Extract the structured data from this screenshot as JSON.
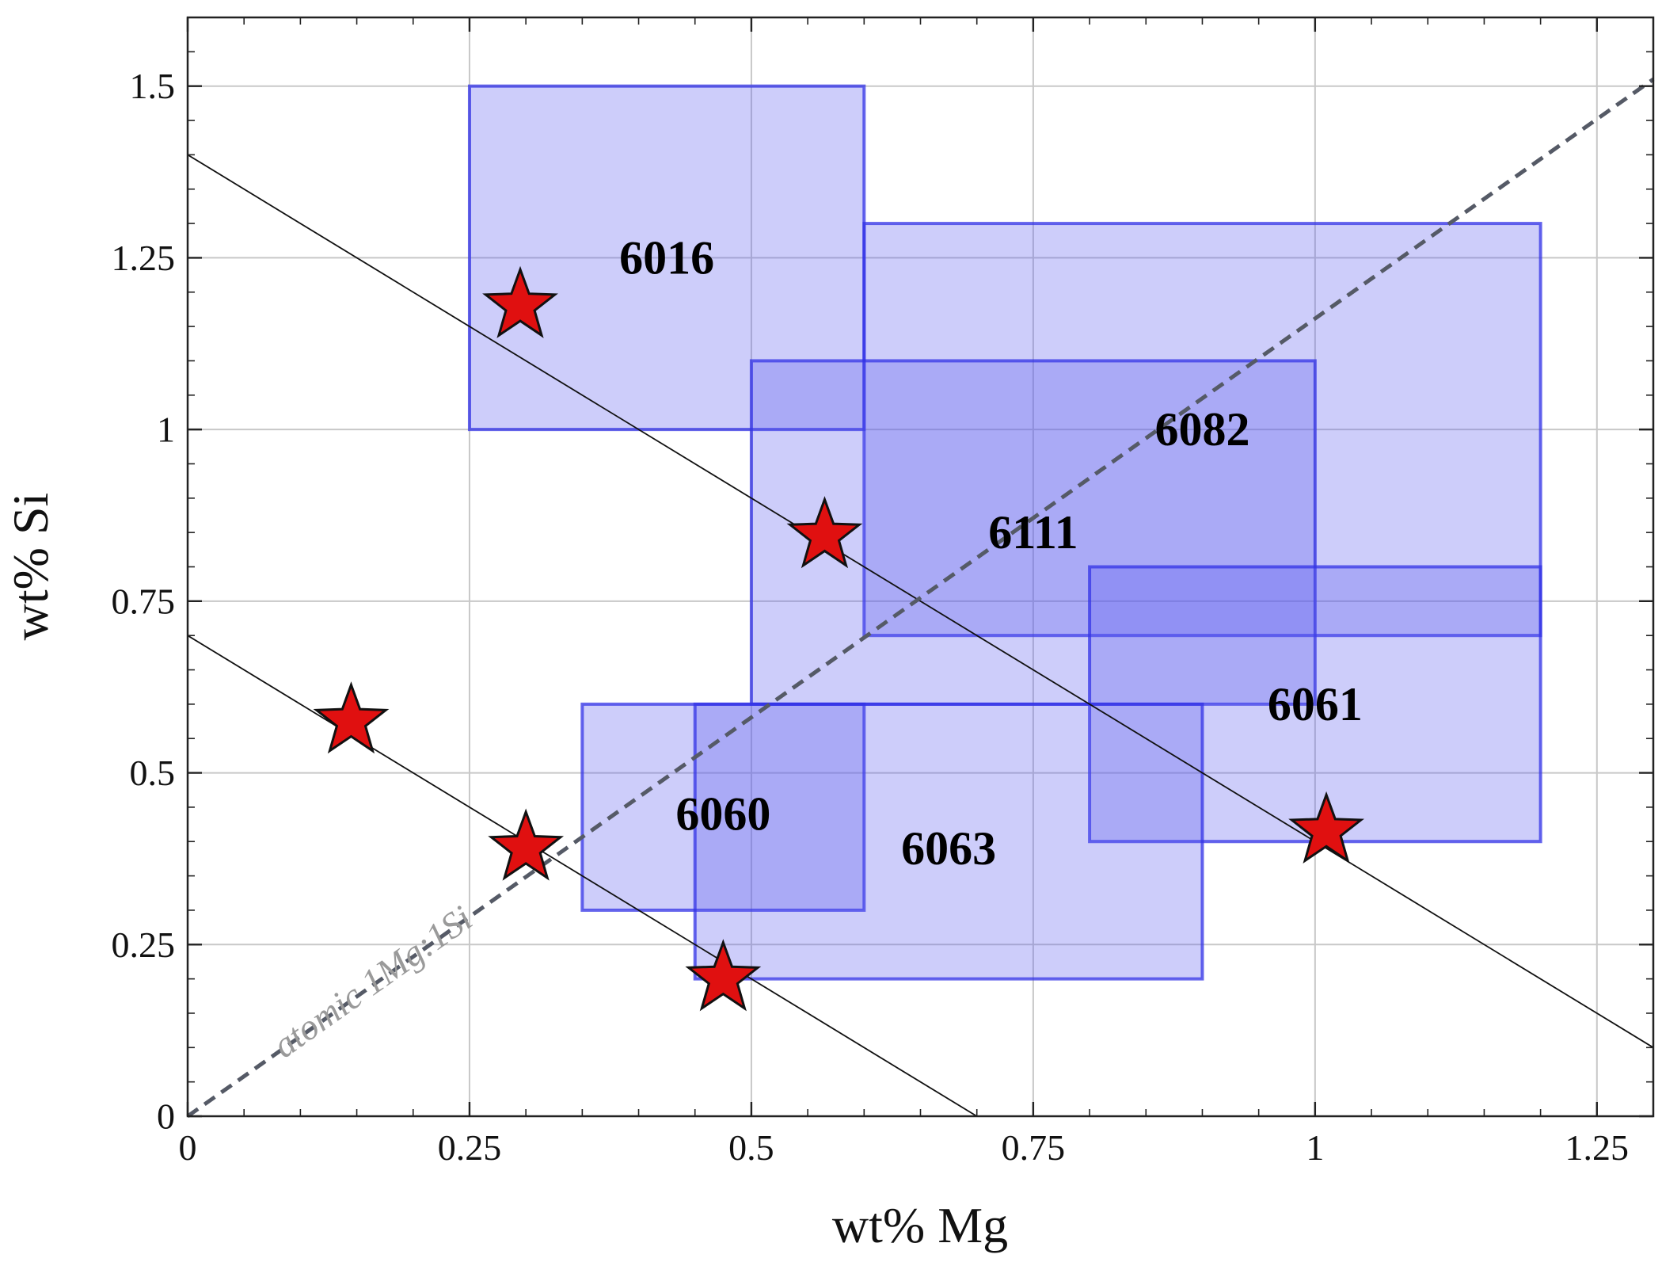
{
  "chart_data": {
    "type": "scatter",
    "title": "",
    "xlabel": "wt% Mg",
    "ylabel": "wt% Si",
    "xlim": [
      0,
      1.3
    ],
    "ylim": [
      0,
      1.6
    ],
    "x_ticks": [
      {
        "value": 0,
        "label": "0"
      },
      {
        "value": 0.25,
        "label": "0.25"
      },
      {
        "value": 0.5,
        "label": "0.5"
      },
      {
        "value": 0.75,
        "label": "0.75"
      },
      {
        "value": 1,
        "label": "1"
      },
      {
        "value": 1.25,
        "label": "1.25"
      }
    ],
    "y_ticks": [
      {
        "value": 0,
        "label": "0"
      },
      {
        "value": 0.25,
        "label": "0.25"
      },
      {
        "value": 0.5,
        "label": "0.5"
      },
      {
        "value": 0.75,
        "label": "0.75"
      },
      {
        "value": 1,
        "label": "1"
      },
      {
        "value": 1.25,
        "label": "1.25"
      },
      {
        "value": 1.5,
        "label": "1.5"
      }
    ],
    "grid": true,
    "colors": {
      "box_fill": "#5a5af0",
      "box_stroke": "#3333e6",
      "star_fill": "#e01010",
      "ratio_line": "#555a66",
      "guide_line": "#111111"
    },
    "composition_ranges": [
      {
        "name": "6016",
        "mg": [
          0.25,
          0.6
        ],
        "si": [
          1.0,
          1.5
        ],
        "label_at": [
          0.425,
          1.25
        ]
      },
      {
        "name": "6082",
        "mg": [
          0.6,
          1.2
        ],
        "si": [
          0.7,
          1.3
        ],
        "label_at": [
          0.9,
          1.0
        ]
      },
      {
        "name": "6111",
        "mg": [
          0.5,
          1.0
        ],
        "si": [
          0.6,
          1.1
        ],
        "label_at": [
          0.75,
          0.85
        ]
      },
      {
        "name": "6061",
        "mg": [
          0.8,
          1.2
        ],
        "si": [
          0.4,
          0.8
        ],
        "label_at": [
          1.0,
          0.6
        ]
      },
      {
        "name": "6060",
        "mg": [
          0.35,
          0.6
        ],
        "si": [
          0.3,
          0.6
        ],
        "label_at": [
          0.475,
          0.44
        ]
      },
      {
        "name": "6063",
        "mg": [
          0.45,
          0.9
        ],
        "si": [
          0.2,
          0.6
        ],
        "label_at": [
          0.675,
          0.39
        ]
      }
    ],
    "points": [
      {
        "x": 0.295,
        "y": 1.18
      },
      {
        "x": 0.565,
        "y": 0.845
      },
      {
        "x": 0.145,
        "y": 0.575
      },
      {
        "x": 0.3,
        "y": 0.39
      },
      {
        "x": 0.475,
        "y": 0.2
      },
      {
        "x": 1.01,
        "y": 0.415
      }
    ],
    "guide_lines": [
      {
        "from": [
          0,
          1.4
        ],
        "to": [
          1.3,
          0.1
        ]
      },
      {
        "from": [
          0,
          0.7
        ],
        "to": [
          0.7,
          0
        ]
      }
    ],
    "ratio_line": {
      "from": [
        0,
        0
      ],
      "to": [
        1.3,
        1.51
      ],
      "label": "atomic 1Mg:1Si"
    }
  }
}
